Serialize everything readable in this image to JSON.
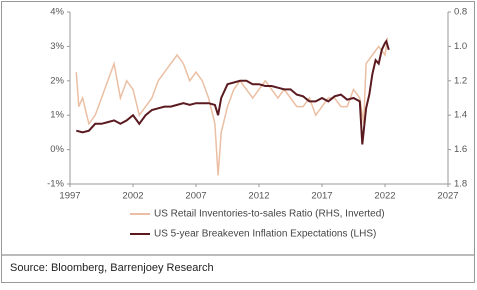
{
  "chart_data": {
    "type": "line",
    "source": "Source: Bloomberg, Barrenjoey Research",
    "xlim": [
      1997,
      2027
    ],
    "xticks": [
      1997,
      2002,
      2007,
      2012,
      2017,
      2022,
      2027
    ],
    "ylim": [
      -1,
      4
    ],
    "yticks": [
      {
        "value": -1,
        "label": "-1%"
      },
      {
        "value": 0,
        "label": "0%"
      },
      {
        "value": 1,
        "label": "1%"
      },
      {
        "value": 2,
        "label": "2%"
      },
      {
        "value": 3,
        "label": "3%"
      },
      {
        "value": 4,
        "label": "4%"
      }
    ],
    "y2lim": [
      1.8,
      0.8
    ],
    "y2ticks": [
      {
        "value": 0.8,
        "label": "0.8"
      },
      {
        "value": 1.0,
        "label": "1.0"
      },
      {
        "value": 1.2,
        "label": "1.2"
      },
      {
        "value": 1.4,
        "label": "1.4"
      },
      {
        "value": 1.6,
        "label": "1.6"
      },
      {
        "value": 1.8,
        "label": "1.8"
      }
    ],
    "series": [
      {
        "name": "US Retail Inventories-to-sales Ratio (RHS, Inverted)",
        "color": "#ebbfa3",
        "axis": "y2",
        "x": [
          1997.5,
          1997.7,
          1998,
          1998.5,
          1999,
          1999.5,
          2000,
          2000.5,
          2001,
          2001.5,
          2002,
          2002.5,
          2003,
          2003.5,
          2004,
          2004.5,
          2005,
          2005.5,
          2006,
          2006.5,
          2007,
          2007.5,
          2008,
          2008.5,
          2008.75,
          2009,
          2009.5,
          2010,
          2010.5,
          2011,
          2011.5,
          2012,
          2012.5,
          2013,
          2013.5,
          2014,
          2014.5,
          2015,
          2015.5,
          2016,
          2016.5,
          2017,
          2017.5,
          2018,
          2018.5,
          2019,
          2019.5,
          2020,
          2020.3,
          2020.5,
          2021,
          2021.5,
          2022,
          2022.2
        ],
        "values": [
          1.15,
          1.35,
          1.3,
          1.45,
          1.4,
          1.3,
          1.2,
          1.1,
          1.3,
          1.2,
          1.25,
          1.4,
          1.35,
          1.3,
          1.2,
          1.15,
          1.1,
          1.05,
          1.1,
          1.2,
          1.15,
          1.2,
          1.3,
          1.45,
          1.75,
          1.5,
          1.35,
          1.25,
          1.2,
          1.25,
          1.3,
          1.25,
          1.2,
          1.25,
          1.3,
          1.25,
          1.3,
          1.35,
          1.35,
          1.3,
          1.4,
          1.35,
          1.3,
          1.3,
          1.35,
          1.35,
          1.25,
          1.3,
          1.45,
          1.1,
          1.05,
          1.0,
          1.05,
          0.95
        ]
      },
      {
        "name": "US 5-year Breakeven Inflation Expectations (LHS)",
        "color": "#5a1a1f",
        "x": [
          1997.5,
          1998,
          1998.5,
          1999,
          1999.5,
          2000,
          2000.5,
          2001,
          2001.5,
          2002,
          2002.5,
          2003,
          2003.5,
          2004,
          2004.5,
          2005,
          2005.5,
          2006,
          2006.5,
          2007,
          2007.5,
          2008,
          2008.5,
          2008.75,
          2009,
          2009.5,
          2010,
          2010.5,
          2011,
          2011.5,
          2012,
          2012.5,
          2013,
          2013.5,
          2014,
          2014.5,
          2015,
          2015.5,
          2016,
          2016.5,
          2017,
          2017.5,
          2018,
          2018.5,
          2019,
          2019.5,
          2020,
          2020.2,
          2020.5,
          2020.75,
          2021,
          2021.25,
          2021.5,
          2021.75,
          2022,
          2022.1,
          2022.3
        ],
        "values": [
          0.55,
          0.5,
          0.55,
          0.75,
          0.75,
          0.8,
          0.85,
          0.75,
          0.85,
          1.0,
          0.75,
          1.0,
          1.15,
          1.2,
          1.25,
          1.25,
          1.3,
          1.35,
          1.3,
          1.35,
          1.35,
          1.35,
          1.3,
          1.0,
          1.5,
          1.9,
          1.95,
          2.0,
          2.0,
          1.9,
          1.9,
          1.85,
          1.85,
          1.8,
          1.75,
          1.75,
          1.6,
          1.55,
          1.4,
          1.4,
          1.5,
          1.4,
          1.55,
          1.6,
          1.45,
          1.5,
          1.4,
          0.15,
          1.2,
          1.6,
          2.2,
          2.6,
          2.5,
          2.9,
          3.1,
          3.15,
          2.9
        ]
      }
    ]
  }
}
